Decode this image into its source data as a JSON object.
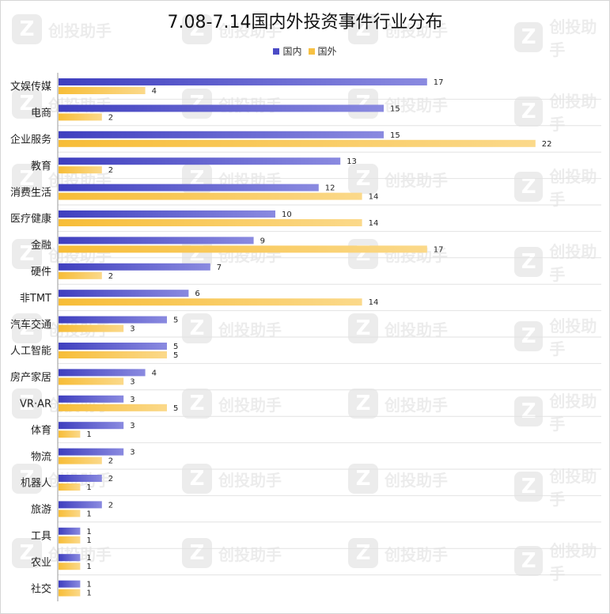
{
  "chart_data": {
    "type": "bar",
    "orientation": "horizontal",
    "title": "7.08-7.14国内外投资事件行业分布",
    "categories": [
      "文娱传媒",
      "电商",
      "企业服务",
      "教育",
      "消费生活",
      "医疗健康",
      "金融",
      "硬件",
      "非TMT",
      "汽车交通",
      "人工智能",
      "房产家居",
      "VR·AR",
      "体育",
      "物流",
      "机器人",
      "旅游",
      "工具",
      "农业",
      "社交"
    ],
    "series": [
      {
        "name": "国内",
        "color": "#4b4bc6",
        "values": [
          17,
          15,
          15,
          13,
          12,
          10,
          9,
          7,
          6,
          5,
          5,
          4,
          3,
          3,
          3,
          2,
          2,
          1,
          1,
          1
        ]
      },
      {
        "name": "国外",
        "color": "#f7c143",
        "values": [
          4,
          2,
          22,
          2,
          14,
          14,
          17,
          2,
          14,
          3,
          5,
          3,
          5,
          1,
          2,
          1,
          1,
          1,
          1,
          1
        ]
      }
    ],
    "xlim": [
      0,
      22
    ],
    "grid": true,
    "legend_position": "top-center"
  },
  "watermark": {
    "text": "创投助手",
    "logo": "Z"
  }
}
